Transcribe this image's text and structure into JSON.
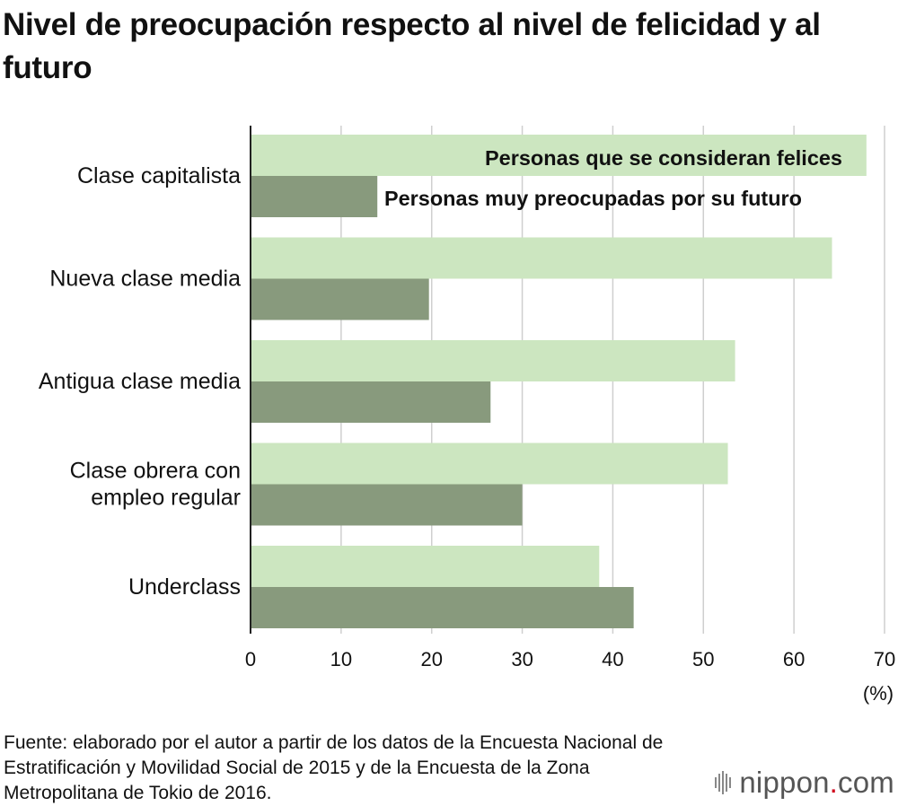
{
  "title": "Nivel de preocupación respecto al nivel de felicidad y al futuro",
  "chart_data": {
    "type": "bar",
    "orientation": "horizontal",
    "categories": [
      "Clase capitalista",
      "Nueva clase media",
      "Antigua clase media",
      "Clase obrera con empleo regular",
      "Underclass"
    ],
    "category_lines": [
      [
        "Clase capitalista"
      ],
      [
        "Nueva clase media"
      ],
      [
        "Antigua clase media"
      ],
      [
        "Clase obrera con",
        "empleo regular"
      ],
      [
        "Underclass"
      ]
    ],
    "series": [
      {
        "name": "Personas que se consideran felices",
        "color": "#cce6c0",
        "values": [
          68,
          64.2,
          53.5,
          52.7,
          38.5
        ]
      },
      {
        "name": "Personas muy preocupadas por su futuro",
        "color": "#889a7d",
        "values": [
          14,
          19.7,
          26.5,
          30,
          42.3
        ]
      }
    ],
    "xlim": [
      0,
      70
    ],
    "xticks": [
      "0",
      "10",
      "20",
      "30",
      "40",
      "50",
      "60",
      "70"
    ],
    "xunit": "(%)",
    "grid": true
  },
  "source": "Fuente: elaborado por el autor a partir de los datos de la Encuesta Nacional de Estratificación y Movilidad Social de 2015 y de la Encuesta de la Zona Metropolitana de Tokio de 2016.",
  "logo": {
    "name": "nippon",
    "dot": ".",
    "tld": "com"
  }
}
